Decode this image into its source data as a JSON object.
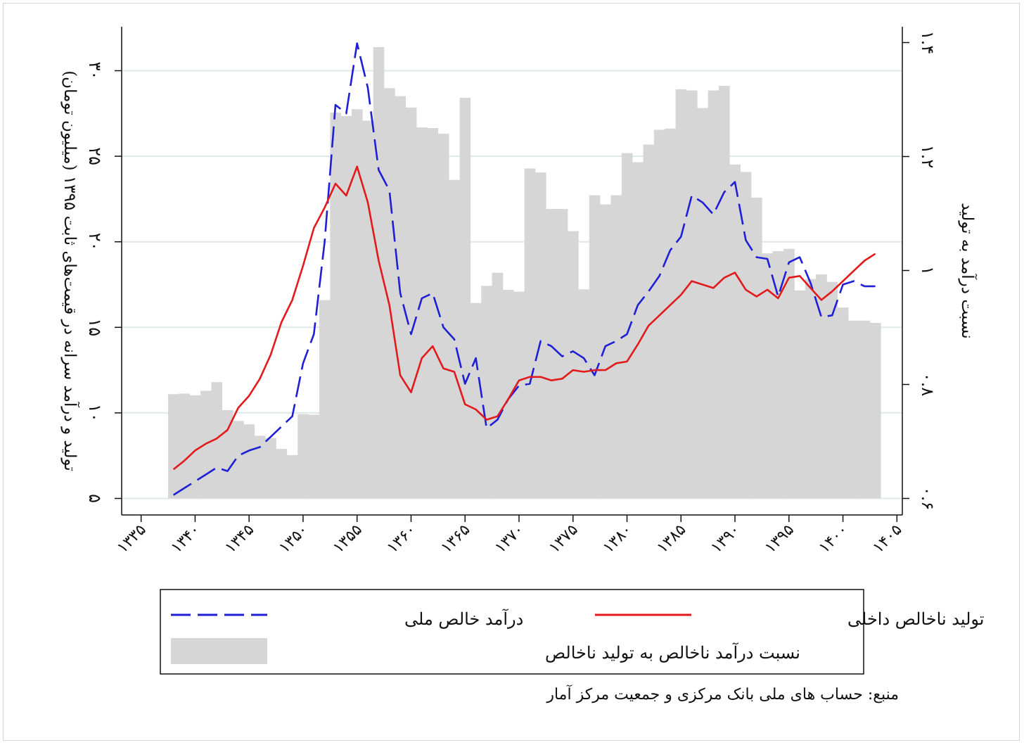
{
  "chart_data": {
    "type": "bar+line",
    "ylabel_left": "تولید و درآمد سرانه در قیمت‌های ثابت ۱۳۹۵ (میلیون تومان)",
    "ylabel_right": "نسبت درآمد به تولید",
    "x_ticks": [
      1335,
      1340,
      1345,
      1350,
      1355,
      1360,
      1365,
      1370,
      1375,
      1380,
      1385,
      1390,
      1395,
      1400,
      1405
    ],
    "x_tick_labels": [
      "۱۳۳۵",
      "۱۳۴۰",
      "۱۳۴۵",
      "۱۳۵۰",
      "۱۳۵۵",
      "۱۳۶۰",
      "۱۳۶۵",
      "۱۳۷۰",
      "۱۳۷۵",
      "۱۳۸۰",
      "۱۳۸۵",
      "۱۳۹۰",
      "۱۳۹۵",
      "۱۴۰۰",
      "۱۴۰۵"
    ],
    "y_left_ticks": [
      5,
      10,
      15,
      20,
      25,
      30
    ],
    "y_left_tick_labels": [
      "۵",
      "۱۰",
      "۱۵",
      "۲۰",
      "۲۵",
      "۳۰"
    ],
    "y_left_lim": [
      5,
      31.6
    ],
    "y_right_ticks": [
      0.6,
      0.8,
      1.0,
      1.2,
      1.4
    ],
    "y_right_tick_labels": [
      "۰.۶",
      "۰.۸",
      "۱",
      "۱.۲",
      "۱.۴"
    ],
    "y_right_lim": [
      0.6,
      1.4
    ],
    "x_lim": [
      1333.2,
      1405.5
    ],
    "grid": true,
    "years": [
      1338,
      1339,
      1340,
      1341,
      1342,
      1343,
      1344,
      1345,
      1346,
      1347,
      1348,
      1349,
      1350,
      1351,
      1352,
      1353,
      1354,
      1355,
      1356,
      1357,
      1358,
      1359,
      1360,
      1361,
      1362,
      1363,
      1364,
      1365,
      1366,
      1367,
      1368,
      1369,
      1370,
      1371,
      1372,
      1373,
      1374,
      1375,
      1376,
      1377,
      1378,
      1379,
      1380,
      1381,
      1382,
      1383,
      1384,
      1385,
      1386,
      1387,
      1388,
      1389,
      1390,
      1391,
      1392,
      1393,
      1394,
      1395,
      1396,
      1397,
      1398,
      1399,
      1400,
      1401,
      1402,
      1403
    ],
    "series": [
      {
        "name": "درآمد خالص ملی",
        "kind": "line",
        "style": "dashed",
        "color": "#1f1fd6",
        "axis": "left",
        "values": [
          5.2,
          5.6,
          6.0,
          6.4,
          6.8,
          6.6,
          7.5,
          7.8,
          8.0,
          8.6,
          9.2,
          9.8,
          12.9,
          14.6,
          20.0,
          28.0,
          27.5,
          31.6,
          29.0,
          24.2,
          23.0,
          17.0,
          14.6,
          16.7,
          17.0,
          15.0,
          14.3,
          11.7,
          13.2,
          9.1,
          9.6,
          10.8,
          11.6,
          11.7,
          14.2,
          13.9,
          13.3,
          13.6,
          13.2,
          12.2,
          13.9,
          14.2,
          14.6,
          16.3,
          17.1,
          18.0,
          19.5,
          20.3,
          22.7,
          22.3,
          21.6,
          22.9,
          23.5,
          20.1,
          19.1,
          19.0,
          16.8,
          18.8,
          19.1,
          17.6,
          15.6,
          15.7,
          17.5,
          17.7,
          17.4,
          17.4
        ]
      },
      {
        "name": "تولید ناخالص داخلی",
        "kind": "line",
        "style": "solid",
        "color": "#e31a1c",
        "axis": "left",
        "values": [
          6.7,
          7.2,
          7.8,
          8.2,
          8.5,
          9.0,
          10.3,
          11.0,
          12.0,
          13.4,
          15.3,
          16.6,
          18.6,
          20.8,
          22.0,
          23.4,
          22.7,
          24.4,
          22.3,
          18.9,
          16.3,
          12.2,
          11.2,
          13.2,
          13.9,
          12.6,
          12.4,
          10.5,
          10.2,
          9.6,
          9.8,
          10.8,
          11.9,
          12.1,
          12.1,
          11.9,
          12.0,
          12.5,
          12.4,
          12.5,
          12.5,
          12.9,
          13.0,
          14.0,
          15.1,
          15.7,
          16.3,
          16.9,
          17.7,
          17.5,
          17.3,
          17.9,
          18.2,
          17.2,
          16.8,
          17.2,
          16.7,
          17.9,
          18.0,
          17.3,
          16.6,
          17.1,
          17.7,
          18.3,
          18.9,
          19.3
        ]
      },
      {
        "name": "نسبت درآمد ناخالص به تولید ناخالص",
        "kind": "bar",
        "color": "#d6d6d6",
        "axis": "right",
        "values": [
          0.783,
          0.784,
          0.781,
          0.789,
          0.804,
          0.755,
          0.736,
          0.73,
          0.71,
          0.706,
          0.687,
          0.676,
          0.748,
          0.747,
          0.948,
          1.277,
          1.271,
          1.283,
          1.263,
          1.392,
          1.32,
          1.306,
          1.286,
          1.251,
          1.25,
          1.24,
          1.159,
          1.303,
          0.943,
          0.973,
          0.996,
          0.966,
          0.963,
          1.179,
          1.172,
          1.108,
          1.108,
          1.069,
          0.967,
          1.132,
          1.116,
          1.132,
          1.206,
          1.19,
          1.221,
          1.247,
          1.249,
          1.318,
          1.316,
          1.285,
          1.316,
          1.324,
          1.186,
          1.173,
          1.128,
          1.03,
          1.034,
          1.038,
          0.965,
          0.985,
          0.993,
          0.98,
          0.935,
          0.912,
          0.912,
          0.908
        ]
      }
    ],
    "legend_position": "bottom"
  },
  "legend": {
    "items": [
      {
        "label": "درآمد خالص ملی",
        "swatch": "dashed-blue"
      },
      {
        "label": "تولید ناخالص داخلی",
        "swatch": "solid-red"
      },
      {
        "label": "نسبت درآمد ناخالص به تولید ناخالص",
        "swatch": "grey-box"
      }
    ]
  },
  "source_note": "منبع: حساب های ملی بانک مرکزی و جمعیت مرکز آمار"
}
